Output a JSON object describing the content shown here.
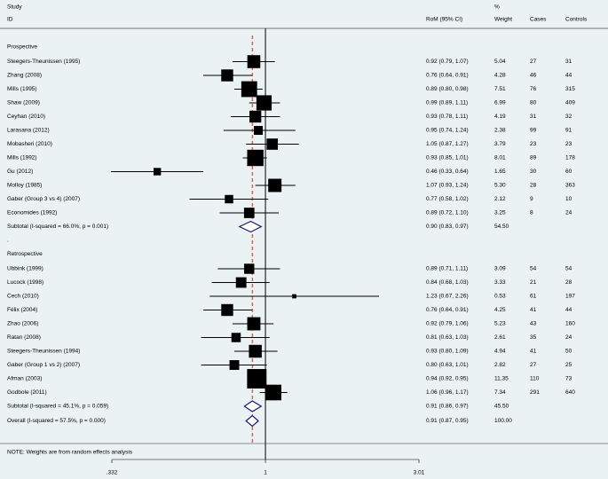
{
  "chart_data": {
    "type": "forest",
    "headers": {
      "study": "Study",
      "id": "ID",
      "pct": "%",
      "ci": "RoM (95% CI)",
      "weight": "Weight",
      "cases": "Cases",
      "controls": "Controls"
    },
    "groups": [
      {
        "name": "Prospective",
        "studies": [
          {
            "name": "Steegers-Theunissen (1995)",
            "estimate": 0.92,
            "ci": [
              0.79,
              1.07
            ],
            "label": "0.92 (0.79, 1.07)",
            "weight": 5.04,
            "weight_label": "5.04",
            "cases": 27,
            "controls": 31
          },
          {
            "name": "Zhang (2008)",
            "estimate": 0.76,
            "ci": [
              0.64,
              0.91
            ],
            "label": "0.76 (0.64, 0.91)",
            "weight": 4.28,
            "weight_label": "4.28",
            "cases": 46,
            "controls": 44
          },
          {
            "name": "Mills (1995)",
            "estimate": 0.89,
            "ci": [
              0.8,
              0.98
            ],
            "label": "0.89 (0.80, 0.98)",
            "weight": 7.51,
            "weight_label": "7.51",
            "cases": 76,
            "controls": 315
          },
          {
            "name": "Shaw (2009)",
            "estimate": 0.99,
            "ci": [
              0.89,
              1.11
            ],
            "label": "0.99 (0.89, 1.11)",
            "weight": 6.99,
            "weight_label": "6.99",
            "cases": 80,
            "controls": 409
          },
          {
            "name": "Ceyhan (2010)",
            "estimate": 0.93,
            "ci": [
              0.78,
              1.11
            ],
            "label": "0.93 (0.78, 1.11)",
            "weight": 4.19,
            "weight_label": "4.19",
            "cases": 31,
            "controls": 32
          },
          {
            "name": "Larasana (2012)",
            "estimate": 0.95,
            "ci": [
              0.74,
              1.24
            ],
            "label": "0.95 (0.74, 1.24)",
            "weight": 2.38,
            "weight_label": "2.38",
            "cases": 99,
            "controls": 91
          },
          {
            "name": "Mobasheri (2010)",
            "estimate": 1.05,
            "ci": [
              0.87,
              1.27
            ],
            "label": "1.05 (0.87, 1.27)",
            "weight": 3.79,
            "weight_label": "3.79",
            "cases": 23,
            "controls": 23
          },
          {
            "name": "Mills (1992)",
            "estimate": 0.93,
            "ci": [
              0.85,
              1.01
            ],
            "label": "0.93 (0.85, 1.01)",
            "weight": 8.01,
            "weight_label": "8.01",
            "cases": 89,
            "controls": 178
          },
          {
            "name": "Gu (2012)",
            "estimate": 0.46,
            "ci": [
              0.33,
              0.64
            ],
            "label": "0.46 (0.33, 0.64)",
            "weight": 1.65,
            "weight_label": "1.65",
            "cases": 30,
            "controls": 60
          },
          {
            "name": "Molloy (1985)",
            "estimate": 1.07,
            "ci": [
              0.93,
              1.24
            ],
            "label": "1.07 (0.93, 1.24)",
            "weight": 5.3,
            "weight_label": "5.30",
            "cases": 28,
            "controls": 363
          },
          {
            "name": "Gaber (Group 3 vs 4) (2007)",
            "estimate": 0.77,
            "ci": [
              0.58,
              1.02
            ],
            "label": "0.77 (0.58, 1.02)",
            "weight": 2.12,
            "weight_label": "2.12",
            "cases": 9,
            "controls": 10
          },
          {
            "name": "Economides (1992)",
            "estimate": 0.89,
            "ci": [
              0.72,
              1.1
            ],
            "label": "0.89 (0.72, 1.10)",
            "weight": 3.25,
            "weight_label": "3.25",
            "cases": 8,
            "controls": 24
          }
        ],
        "subtotal": {
          "name": "Subtotal  (I-squared = 66.0%, p = 0.001)",
          "estimate": 0.9,
          "ci": [
            0.83,
            0.97
          ],
          "label": "0.90 (0.83, 0.97)",
          "weight": 54.5,
          "weight_label": "54.50"
        },
        "separator": "."
      },
      {
        "name": "Retrospective",
        "studies": [
          {
            "name": "Ubbink (1999)",
            "estimate": 0.89,
            "ci": [
              0.71,
              1.11
            ],
            "label": "0.89 (0.71, 1.11)",
            "weight": 3.09,
            "weight_label": "3.09",
            "cases": 54,
            "controls": 54
          },
          {
            "name": "Lucock (1998)",
            "estimate": 0.84,
            "ci": [
              0.68,
              1.03
            ],
            "label": "0.84 (0.68, 1.03)",
            "weight": 3.33,
            "weight_label": "3.33",
            "cases": 21,
            "controls": 28
          },
          {
            "name": "Cech (2010)",
            "estimate": 1.23,
            "ci": [
              0.67,
              2.26
            ],
            "label": "1.23 (0.67, 2.26)",
            "weight": 0.53,
            "weight_label": "0.53",
            "cases": 61,
            "controls": 197
          },
          {
            "name": "Félix (2004)",
            "estimate": 0.76,
            "ci": [
              0.64,
              0.91
            ],
            "label": "0.76 (0.64, 0.91)",
            "weight": 4.25,
            "weight_label": "4.25",
            "cases": 41,
            "controls": 44
          },
          {
            "name": "Zhao (2006)",
            "estimate": 0.92,
            "ci": [
              0.79,
              1.06
            ],
            "label": "0.92 (0.79, 1.06)",
            "weight": 5.23,
            "weight_label": "5.23",
            "cases": 43,
            "controls": 160
          },
          {
            "name": "Ratan (2008)",
            "estimate": 0.81,
            "ci": [
              0.63,
              1.03
            ],
            "label": "0.81 (0.63, 1.03)",
            "weight": 2.61,
            "weight_label": "2.61",
            "cases": 35,
            "controls": 24
          },
          {
            "name": "Steegers-Theunissen (1994)",
            "estimate": 0.93,
            "ci": [
              0.8,
              1.09
            ],
            "label": "0.93 (0.80, 1.09)",
            "weight": 4.94,
            "weight_label": "4.94",
            "cases": 41,
            "controls": 50
          },
          {
            "name": "Gaber (Group 1 vs 2) (2007)",
            "estimate": 0.8,
            "ci": [
              0.63,
              1.01
            ],
            "label": "0.80 (0.63, 1.01)",
            "weight": 2.82,
            "weight_label": "2.82",
            "cases": 27,
            "controls": 25
          },
          {
            "name": "Afman (2003)",
            "estimate": 0.94,
            "ci": [
              0.92,
              0.95
            ],
            "label": "0.94 (0.92, 0.95)",
            "weight": 11.35,
            "weight_label": "11.35",
            "cases": 110,
            "controls": 73
          },
          {
            "name": "Godbole (2011)",
            "estimate": 1.06,
            "ci": [
              0.96,
              1.17
            ],
            "label": "1.06 (0.96, 1.17)",
            "weight": 7.34,
            "weight_label": "7.34",
            "cases": 291,
            "controls": 640
          }
        ],
        "subtotal": {
          "name": "Subtotal  (I-squared = 45.1%, p = 0.059)",
          "estimate": 0.91,
          "ci": [
            0.86,
            0.97
          ],
          "label": "0.91 (0.86, 0.97)",
          "weight": 45.5,
          "weight_label": "45.50"
        },
        "separator": "."
      }
    ],
    "overall": {
      "name": "Overall  (I-squared = 57.5%, p = 0.000)",
      "estimate": 0.91,
      "ci": [
        0.87,
        0.95
      ],
      "label": "0.91 (0.87, 0.95)",
      "weight": 100,
      "weight_label": "100.00"
    },
    "note": "NOTE: Weights are from random effects analysis",
    "log_x": true,
    "null_line": 1,
    "xlim": [
      0.332,
      3.01
    ],
    "xticks": [
      {
        "value": 0.332,
        "label": ".332"
      },
      1,
      {
        "value": 3.01,
        "label": "3.01"
      }
    ],
    "box_color": "#000000",
    "diamond_color": "#1a1a6e",
    "overall_line_color": "#c0392b"
  }
}
